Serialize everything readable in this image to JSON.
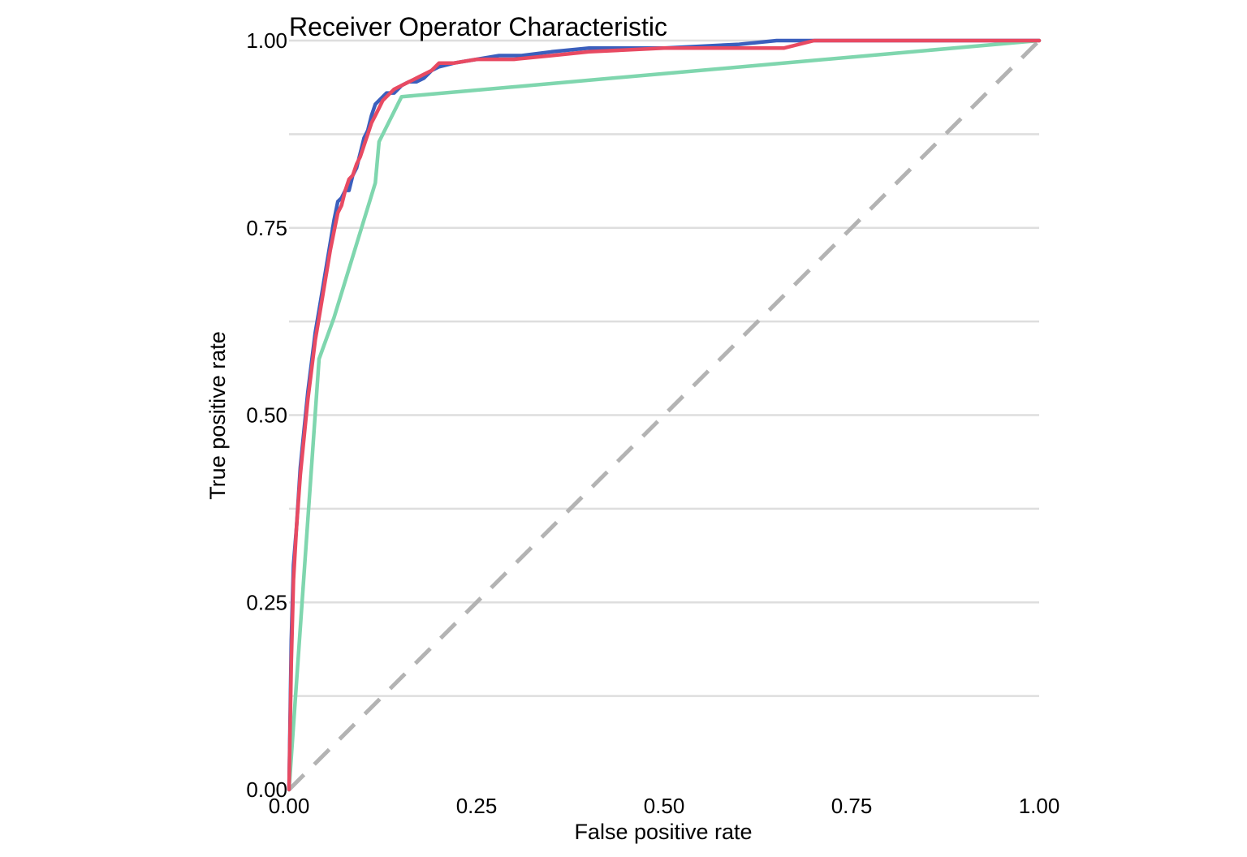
{
  "chart_data": {
    "type": "line",
    "title": "Receiver Operator Characteristic",
    "xlabel": "False positive rate",
    "ylabel": "True positive rate",
    "xlim": [
      0,
      1
    ],
    "ylim": [
      0,
      1
    ],
    "x_ticks": [
      "0.00",
      "0.25",
      "0.50",
      "0.75",
      "1.00"
    ],
    "y_ticks": [
      "0.00",
      "0.25",
      "0.50",
      "0.75",
      "1.00"
    ],
    "x_tick_values": [
      0,
      0.25,
      0.5,
      0.75,
      1.0
    ],
    "y_tick_values": [
      0,
      0.25,
      0.5,
      0.75,
      1.0
    ],
    "y_gridlines": [
      0.125,
      0.25,
      0.375,
      0.5,
      0.625,
      0.75,
      0.875,
      1.0
    ],
    "grid": true,
    "legend": "none",
    "reference_line": {
      "x": [
        0,
        1
      ],
      "y": [
        0,
        1
      ],
      "color": "#b3b3b3",
      "style": "dashed"
    },
    "series": [
      {
        "color": "#3b5fbd",
        "x": [
          0,
          0.003,
          0.006,
          0.01,
          0.015,
          0.02,
          0.025,
          0.03,
          0.035,
          0.04,
          0.045,
          0.05,
          0.055,
          0.06,
          0.065,
          0.07,
          0.075,
          0.08,
          0.085,
          0.09,
          0.095,
          0.1,
          0.105,
          0.11,
          0.115,
          0.12,
          0.125,
          0.13,
          0.14,
          0.15,
          0.16,
          0.17,
          0.18,
          0.19,
          0.2,
          0.22,
          0.25,
          0.28,
          0.31,
          0.35,
          0.4,
          0.5,
          0.6,
          0.65,
          0.7,
          0.8,
          0.9,
          1.0
        ],
        "y": [
          0,
          0.2,
          0.3,
          0.35,
          0.43,
          0.48,
          0.53,
          0.57,
          0.61,
          0.64,
          0.67,
          0.7,
          0.73,
          0.76,
          0.785,
          0.79,
          0.8,
          0.8,
          0.82,
          0.83,
          0.85,
          0.87,
          0.88,
          0.9,
          0.915,
          0.92,
          0.925,
          0.93,
          0.93,
          0.94,
          0.945,
          0.945,
          0.95,
          0.96,
          0.965,
          0.97,
          0.975,
          0.98,
          0.98,
          0.985,
          0.99,
          0.99,
          0.995,
          1.0,
          1.0,
          1.0,
          1.0,
          1.0
        ]
      },
      {
        "color": "#e84a62",
        "x": [
          0,
          0.003,
          0.006,
          0.01,
          0.015,
          0.02,
          0.025,
          0.03,
          0.035,
          0.04,
          0.045,
          0.05,
          0.055,
          0.06,
          0.065,
          0.07,
          0.075,
          0.08,
          0.085,
          0.09,
          0.095,
          0.1,
          0.105,
          0.11,
          0.115,
          0.12,
          0.125,
          0.13,
          0.14,
          0.15,
          0.16,
          0.17,
          0.18,
          0.19,
          0.2,
          0.22,
          0.25,
          0.3,
          0.35,
          0.4,
          0.5,
          0.6,
          0.66,
          0.7,
          0.8,
          0.9,
          1.0
        ],
        "y": [
          0,
          0.17,
          0.28,
          0.35,
          0.42,
          0.47,
          0.52,
          0.56,
          0.6,
          0.63,
          0.66,
          0.69,
          0.72,
          0.745,
          0.77,
          0.78,
          0.8,
          0.815,
          0.82,
          0.835,
          0.845,
          0.86,
          0.875,
          0.89,
          0.9,
          0.91,
          0.92,
          0.925,
          0.935,
          0.94,
          0.945,
          0.95,
          0.955,
          0.96,
          0.97,
          0.97,
          0.975,
          0.975,
          0.98,
          0.985,
          0.99,
          0.99,
          0.99,
          1.0,
          1.0,
          1.0,
          1.0
        ]
      },
      {
        "color": "#7fd6ae",
        "x": [
          0,
          0.04,
          0.06,
          0.115,
          0.12,
          0.15,
          1.0
        ],
        "y": [
          0,
          0.575,
          0.63,
          0.81,
          0.865,
          0.925,
          1.0
        ]
      }
    ]
  },
  "colors": {
    "grid": "#dedede",
    "text": "#000000"
  }
}
